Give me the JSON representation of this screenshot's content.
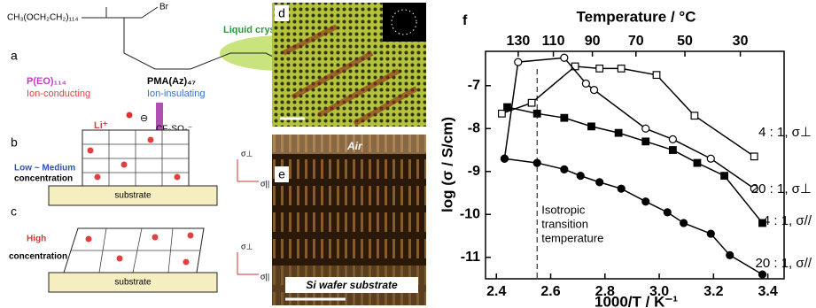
{
  "panel_a": {
    "label": "a",
    "formula": "CH₃(OCH₂CH₂)₁₁₄",
    "bromine": "Br",
    "mesogen": "Liquid crystalline mesogen",
    "block1_name": "P(EO)₁₁₄",
    "block1_role": "Ion-conducting",
    "block2_name": "PMA(Az)₄₇",
    "block2_role": "Ion-insulating",
    "cation": "Li⁺",
    "anion_symbol": "⊖",
    "anion": "CF₃SO₃⁻"
  },
  "panel_b": {
    "label": "b",
    "level": "Low ~ Medium",
    "concentration": "concentration",
    "substrate": "substrate",
    "sigma_perp": "σ⊥",
    "sigma_par": "σ||"
  },
  "panel_c": {
    "label": "c",
    "level": "High",
    "concentration": "concentration",
    "substrate": "substrate",
    "sigma_perp": "σ⊥",
    "sigma_par": "σ||"
  },
  "panel_d": {
    "label": "d"
  },
  "panel_e": {
    "label": "e",
    "top": "Air",
    "bottom": "Si wafer substrate"
  },
  "chart_data": {
    "type": "line",
    "panel_label": "f",
    "x_label": "1000/T / K⁻¹",
    "y_label": "log (σ / S/cm)",
    "x2_label": "Temperature / °C",
    "xlim": [
      2.36,
      3.46
    ],
    "ylim": [
      -11.5,
      -6.2
    ],
    "xticks": [
      2.4,
      2.6,
      2.8,
      {
        "value": 3,
        "label": "3.0"
      },
      3.2,
      3.4
    ],
    "yticks": [
      -7,
      -8,
      -9,
      -10,
      -11
    ],
    "x2ticks": [
      130,
      110,
      90,
      70,
      50,
      30
    ],
    "transition_x": 2.55,
    "annotation": [
      "Isotropic",
      "transition",
      "temperature"
    ],
    "series": [
      {
        "name": "4 : 1, σ⊥",
        "color": "#000000",
        "marker": "square",
        "filled": false,
        "x": [
          2.42,
          2.53,
          2.69,
          2.78,
          2.86,
          2.99,
          3.13,
          3.35
        ],
        "values": [
          -7.65,
          -7.4,
          -6.55,
          -6.6,
          -6.6,
          -6.75,
          -7.7,
          -8.65
        ]
      },
      {
        "name": "20 : 1, σ⊥",
        "color": "#000000",
        "marker": "circle",
        "filled": false,
        "x": [
          2.43,
          2.48,
          2.65,
          2.73,
          2.76,
          2.95,
          3.05,
          3.19,
          3.35
        ],
        "values": [
          -8.7,
          -6.45,
          -6.35,
          -6.95,
          -7.1,
          -8.0,
          -8.25,
          -8.7,
          -9.4
        ]
      },
      {
        "name": "4 : 1, σ//",
        "color": "#000000",
        "marker": "square",
        "filled": true,
        "x": [
          2.44,
          2.55,
          2.65,
          2.75,
          2.85,
          2.95,
          3.05,
          3.14,
          3.24,
          3.38
        ],
        "values": [
          -7.5,
          -7.65,
          -7.75,
          -7.95,
          -8.1,
          -8.3,
          -8.5,
          -8.8,
          -9.1,
          -10.2
        ]
      },
      {
        "name": "20 : 1, σ//",
        "color": "#000000",
        "marker": "circle",
        "filled": true,
        "x": [
          2.43,
          2.55,
          2.65,
          2.71,
          2.78,
          2.86,
          2.95,
          3.03,
          3.09,
          3.19,
          3.26,
          3.38
        ],
        "values": [
          -8.7,
          -8.8,
          -8.95,
          -9.1,
          -9.25,
          -9.4,
          -9.7,
          -9.95,
          -10.2,
          -10.45,
          -10.95,
          -11.4
        ]
      }
    ]
  }
}
